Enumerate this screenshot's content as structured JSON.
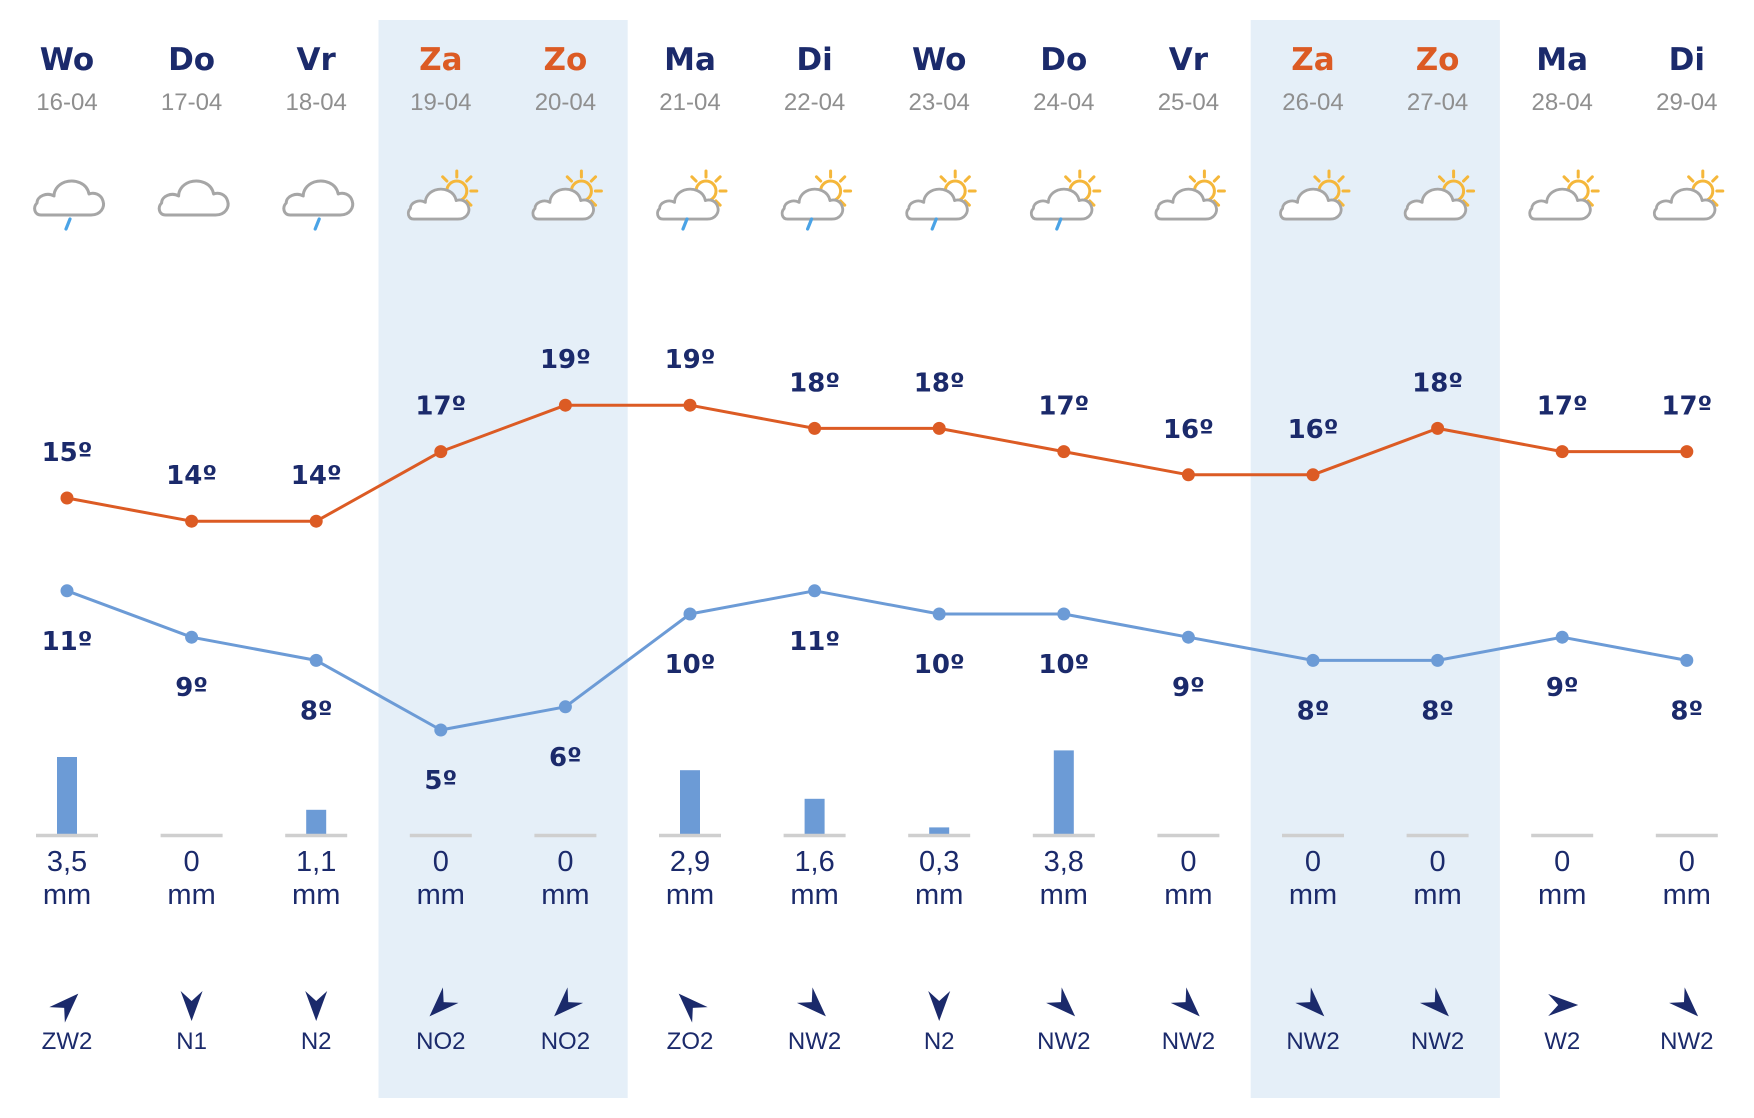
{
  "colors": {
    "weekday": "#1b2a6b",
    "weekend": "#dc5b24",
    "date": "#8f8f8f",
    "weekend_band": "#e5eff8",
    "max_line": "#dc5b24",
    "min_line": "#6c9bd6",
    "precip_bar": "#6c9bd6",
    "baseline": "#cfcfcf",
    "cloud": "#a6a6a6",
    "rain": "#4aa3e6",
    "sun": "#f5b73a",
    "wind_arrow": "#1b2a6b"
  },
  "chart_data": {
    "type": "line",
    "x": [
      "16-04",
      "17-04",
      "18-04",
      "19-04",
      "20-04",
      "21-04",
      "22-04",
      "23-04",
      "24-04",
      "25-04",
      "26-04",
      "27-04",
      "28-04",
      "29-04"
    ],
    "series": [
      {
        "values": [
          15,
          14,
          14,
          17,
          19,
          19,
          18,
          18,
          17,
          16,
          16,
          18,
          17,
          17
        ]
      },
      {
        "values": [
          11,
          9,
          8,
          5,
          6,
          10,
          11,
          10,
          10,
          9,
          8,
          8,
          9,
          8
        ]
      }
    ],
    "temp_unit": "º",
    "precipitation_mm": [
      3.5,
      0,
      1.1,
      0,
      0,
      2.9,
      1.6,
      0.3,
      3.8,
      0,
      0,
      0,
      0,
      0
    ]
  },
  "days": [
    {
      "name": "Wo",
      "date": "16-04",
      "weekend": false,
      "icon": "cloud-rain-icon",
      "max": "15º",
      "min": "11º",
      "precip": "3,5",
      "unit": "mm",
      "wind": "ZW2",
      "wind_from_deg": 225
    },
    {
      "name": "Do",
      "date": "17-04",
      "weekend": false,
      "icon": "cloud-icon",
      "max": "14º",
      "min": "9º",
      "precip": "0",
      "unit": "mm",
      "wind": "N1",
      "wind_from_deg": 0
    },
    {
      "name": "Vr",
      "date": "18-04",
      "weekend": false,
      "icon": "cloud-rain-icon",
      "max": "14º",
      "min": "8º",
      "precip": "1,1",
      "unit": "mm",
      "wind": "N2",
      "wind_from_deg": 0
    },
    {
      "name": "Za",
      "date": "19-04",
      "weekend": true,
      "icon": "sun-cloud-icon",
      "max": "17º",
      "min": "5º",
      "precip": "0",
      "unit": "mm",
      "wind": "NO2",
      "wind_from_deg": 45
    },
    {
      "name": "Zo",
      "date": "20-04",
      "weekend": true,
      "icon": "sun-cloud-icon",
      "max": "19º",
      "min": "6º",
      "precip": "0",
      "unit": "mm",
      "wind": "NO2",
      "wind_from_deg": 45
    },
    {
      "name": "Ma",
      "date": "21-04",
      "weekend": false,
      "icon": "sun-cloud-rain-icon",
      "max": "19º",
      "min": "10º",
      "precip": "2,9",
      "unit": "mm",
      "wind": "ZO2",
      "wind_from_deg": 135
    },
    {
      "name": "Di",
      "date": "22-04",
      "weekend": false,
      "icon": "sun-cloud-rain-icon",
      "max": "18º",
      "min": "11º",
      "precip": "1,6",
      "unit": "mm",
      "wind": "NW2",
      "wind_from_deg": 315
    },
    {
      "name": "Wo",
      "date": "23-04",
      "weekend": false,
      "icon": "sun-cloud-rain-icon",
      "max": "18º",
      "min": "10º",
      "precip": "0,3",
      "unit": "mm",
      "wind": "N2",
      "wind_from_deg": 0
    },
    {
      "name": "Do",
      "date": "24-04",
      "weekend": false,
      "icon": "sun-cloud-rain-icon",
      "max": "17º",
      "min": "10º",
      "precip": "3,8",
      "unit": "mm",
      "wind": "NW2",
      "wind_from_deg": 315
    },
    {
      "name": "Vr",
      "date": "25-04",
      "weekend": false,
      "icon": "sun-cloud-icon",
      "max": "16º",
      "min": "9º",
      "precip": "0",
      "unit": "mm",
      "wind": "NW2",
      "wind_from_deg": 315
    },
    {
      "name": "Za",
      "date": "26-04",
      "weekend": true,
      "icon": "sun-cloud-icon",
      "max": "16º",
      "min": "8º",
      "precip": "0",
      "unit": "mm",
      "wind": "NW2",
      "wind_from_deg": 315
    },
    {
      "name": "Zo",
      "date": "27-04",
      "weekend": true,
      "icon": "sun-cloud-icon",
      "max": "18º",
      "min": "8º",
      "precip": "0",
      "unit": "mm",
      "wind": "NW2",
      "wind_from_deg": 315
    },
    {
      "name": "Ma",
      "date": "28-04",
      "weekend": false,
      "icon": "sun-cloud-icon",
      "max": "17º",
      "min": "9º",
      "precip": "0",
      "unit": "mm",
      "wind": "W2",
      "wind_from_deg": 270
    },
    {
      "name": "Di",
      "date": "29-04",
      "weekend": false,
      "icon": "sun-cloud-icon",
      "max": "17º",
      "min": "8º",
      "precip": "0",
      "unit": "mm",
      "wind": "NW2",
      "wind_from_deg": 315
    }
  ]
}
